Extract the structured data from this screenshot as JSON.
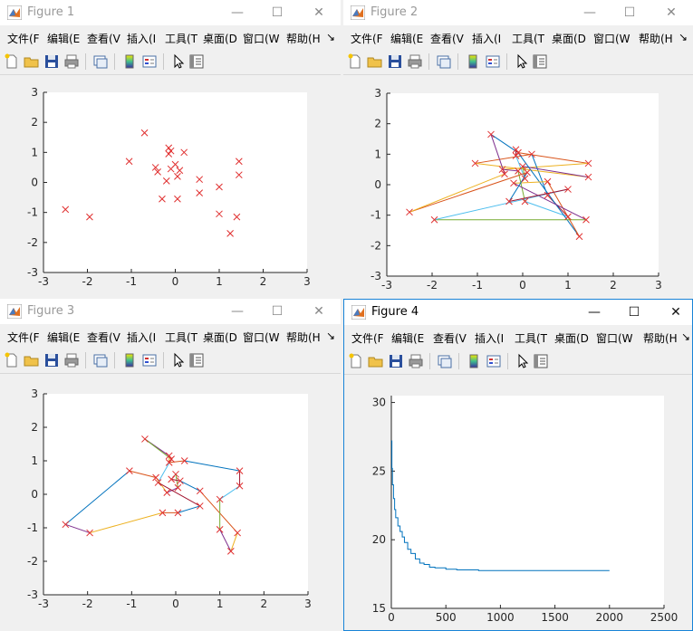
{
  "menu": {
    "file": "文件(F",
    "edit": "编辑(E",
    "view": "查看(V",
    "insert": "插入(I",
    "tools": "工具(T",
    "desktop": "桌面(D",
    "window": "窗口(W",
    "help": "帮助(H",
    "more": "↘"
  },
  "window_controls": {
    "minimize": "—",
    "maximize": "☐",
    "close": "✕"
  },
  "windows": [
    {
      "title": "Figure 1"
    },
    {
      "title": "Figure 2"
    },
    {
      "title": "Figure 3"
    },
    {
      "title": "Figure 4"
    }
  ],
  "colors": {
    "marker": "#e03030",
    "series": [
      "#0072bd",
      "#d95319",
      "#edb120",
      "#7e2f8e",
      "#77ac30",
      "#4dbeee",
      "#a2142f"
    ],
    "active_border": "#1883d7"
  },
  "chart_data": [
    {
      "type": "scatter",
      "title": "",
      "xlabel": "",
      "ylabel": "",
      "xlim": [
        -3,
        3
      ],
      "ylim": [
        -3,
        3
      ],
      "xticks": [
        -3,
        -2,
        -1,
        0,
        1,
        2,
        3
      ],
      "yticks": [
        -3,
        -2,
        -1,
        0,
        1,
        2,
        3
      ],
      "points": [
        [
          -2.5,
          -0.9
        ],
        [
          -1.95,
          -1.15
        ],
        [
          -1.05,
          0.7
        ],
        [
          -0.7,
          1.65
        ],
        [
          -0.45,
          0.5
        ],
        [
          -0.4,
          0.35
        ],
        [
          -0.3,
          -0.55
        ],
        [
          -0.2,
          0.05
        ],
        [
          -0.15,
          1.15
        ],
        [
          -0.15,
          0.95
        ],
        [
          -0.1,
          1.05
        ],
        [
          -0.1,
          0.45
        ],
        [
          0.0,
          0.6
        ],
        [
          0.05,
          0.2
        ],
        [
          0.05,
          -0.55
        ],
        [
          0.1,
          0.4
        ],
        [
          0.2,
          1.0
        ],
        [
          0.55,
          0.1
        ],
        [
          0.55,
          -0.35
        ],
        [
          1.0,
          -0.15
        ],
        [
          1.0,
          -1.05
        ],
        [
          1.25,
          -1.7
        ],
        [
          1.4,
          -1.15
        ],
        [
          1.45,
          0.7
        ],
        [
          1.45,
          0.25
        ]
      ]
    },
    {
      "type": "line",
      "title": "",
      "xlabel": "",
      "ylabel": "",
      "xlim": [
        -3,
        3
      ],
      "ylim": [
        -3,
        3
      ],
      "xticks": [
        -3,
        -2,
        -1,
        0,
        1,
        2,
        3
      ],
      "yticks": [
        -3,
        -2,
        -1,
        0,
        1,
        2,
        3
      ],
      "points": [
        [
          -2.5,
          -0.9
        ],
        [
          -1.95,
          -1.15
        ],
        [
          -1.05,
          0.7
        ],
        [
          -0.7,
          1.65
        ],
        [
          -0.45,
          0.5
        ],
        [
          -0.4,
          0.35
        ],
        [
          -0.3,
          -0.55
        ],
        [
          -0.2,
          0.05
        ],
        [
          -0.15,
          1.15
        ],
        [
          -0.15,
          0.95
        ],
        [
          -0.1,
          1.05
        ],
        [
          -0.1,
          0.45
        ],
        [
          0.0,
          0.6
        ],
        [
          0.05,
          0.2
        ],
        [
          0.05,
          -0.55
        ],
        [
          0.1,
          0.4
        ],
        [
          0.2,
          1.0
        ],
        [
          0.55,
          0.1
        ],
        [
          0.55,
          -0.35
        ],
        [
          1.0,
          -0.15
        ],
        [
          1.0,
          -1.05
        ],
        [
          1.25,
          -1.7
        ],
        [
          1.4,
          -1.15
        ],
        [
          1.45,
          0.7
        ],
        [
          1.45,
          0.25
        ]
      ],
      "route": [
        3,
        10,
        23,
        4,
        11,
        14,
        20,
        18,
        16,
        2,
        24,
        12,
        13,
        9,
        8,
        21,
        17,
        7,
        22,
        1,
        19,
        6,
        15,
        0,
        5,
        3
      ]
    },
    {
      "type": "line",
      "title": "",
      "xlabel": "",
      "ylabel": "",
      "xlim": [
        -3,
        3
      ],
      "ylim": [
        -3,
        3
      ],
      "xticks": [
        -3,
        -2,
        -1,
        0,
        1,
        2,
        3
      ],
      "yticks": [
        -3,
        -2,
        -1,
        0,
        1,
        2,
        3
      ],
      "points": [
        [
          -2.5,
          -0.9
        ],
        [
          -1.95,
          -1.15
        ],
        [
          -1.05,
          0.7
        ],
        [
          -0.7,
          1.65
        ],
        [
          -0.45,
          0.5
        ],
        [
          -0.4,
          0.35
        ],
        [
          -0.3,
          -0.55
        ],
        [
          -0.2,
          0.05
        ],
        [
          -0.15,
          1.15
        ],
        [
          -0.15,
          0.95
        ],
        [
          -0.1,
          1.05
        ],
        [
          -0.1,
          0.45
        ],
        [
          0.0,
          0.6
        ],
        [
          0.05,
          0.2
        ],
        [
          0.05,
          -0.55
        ],
        [
          0.1,
          0.4
        ],
        [
          0.2,
          1.0
        ],
        [
          0.55,
          0.1
        ],
        [
          0.55,
          -0.35
        ],
        [
          1.0,
          -0.15
        ],
        [
          1.0,
          -1.05
        ],
        [
          1.25,
          -1.7
        ],
        [
          1.4,
          -1.15
        ],
        [
          1.45,
          0.7
        ],
        [
          1.45,
          0.25
        ]
      ],
      "route": [
        0,
        2,
        4,
        7,
        13,
        12,
        11,
        15,
        17,
        22,
        21,
        20,
        19,
        24,
        23,
        16,
        9,
        8,
        3,
        10,
        5,
        18,
        14,
        6,
        1,
        0
      ]
    },
    {
      "type": "line",
      "title": "",
      "xlabel": "",
      "ylabel": "",
      "xlim": [
        0,
        2500
      ],
      "ylim": [
        15,
        30.5
      ],
      "xticks": [
        0,
        500,
        1000,
        1500,
        2000,
        2500
      ],
      "yticks": [
        15,
        20,
        25,
        30
      ],
      "x": [
        0,
        5,
        10,
        20,
        30,
        40,
        60,
        80,
        100,
        120,
        150,
        180,
        220,
        260,
        300,
        350,
        400,
        500,
        600,
        800,
        1000,
        1500,
        2000
      ],
      "y": [
        27.2,
        25.2,
        24.0,
        23.0,
        22.2,
        21.6,
        21.0,
        20.6,
        20.2,
        19.8,
        19.3,
        19.0,
        18.6,
        18.3,
        18.2,
        18.0,
        17.95,
        17.85,
        17.8,
        17.75,
        17.75,
        17.75,
        17.75
      ]
    }
  ]
}
